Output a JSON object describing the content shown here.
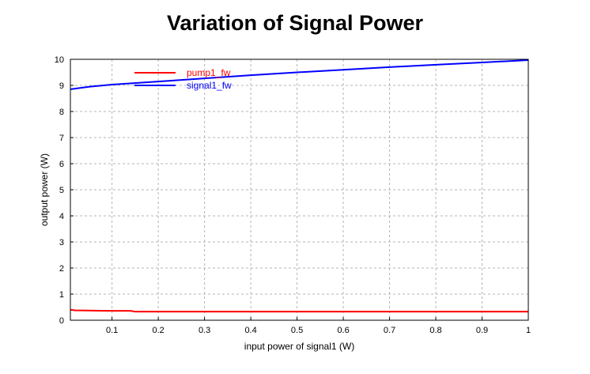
{
  "chart_data": {
    "type": "line",
    "title": "Variation of Signal Power",
    "xlabel": "input power of signal1 (W)",
    "ylabel": "output power (W)",
    "xlim": [
      0.01,
      1
    ],
    "ylim": [
      0,
      10
    ],
    "x_ticks": [
      "0.1",
      "0.2",
      "0.3",
      "0.4",
      "0.5",
      "0.6",
      "0.7",
      "0.8",
      "0.9",
      "1"
    ],
    "x_tick_values": [
      0.1,
      0.2,
      0.3,
      0.4,
      0.5,
      0.6,
      0.7,
      0.8,
      0.9,
      1.0
    ],
    "y_ticks": [
      "0",
      "1",
      "2",
      "3",
      "4",
      "5",
      "6",
      "7",
      "8",
      "9",
      "10"
    ],
    "y_tick_values": [
      0,
      1,
      2,
      3,
      4,
      5,
      6,
      7,
      8,
      9,
      10
    ],
    "grid": true,
    "legend_position": "top-left",
    "series": [
      {
        "name": "pump1_fw",
        "color": "#ff0000",
        "x": [
          0.01,
          0.02,
          0.05,
          0.1,
          0.14,
          0.15,
          0.2,
          0.3,
          0.4,
          0.5,
          0.6,
          0.7,
          0.8,
          0.9,
          1.0
        ],
        "y": [
          0.4,
          0.38,
          0.37,
          0.36,
          0.36,
          0.33,
          0.33,
          0.33,
          0.33,
          0.33,
          0.33,
          0.33,
          0.33,
          0.33,
          0.33
        ]
      },
      {
        "name": "signal1_fw",
        "color": "#0000ff",
        "x": [
          0.01,
          0.05,
          0.1,
          0.2,
          0.3,
          0.4,
          0.5,
          0.6,
          0.7,
          0.8,
          0.9,
          1.0
        ],
        "y": [
          8.85,
          8.95,
          9.03,
          9.15,
          9.27,
          9.39,
          9.5,
          9.6,
          9.7,
          9.79,
          9.88,
          9.97
        ]
      }
    ]
  }
}
